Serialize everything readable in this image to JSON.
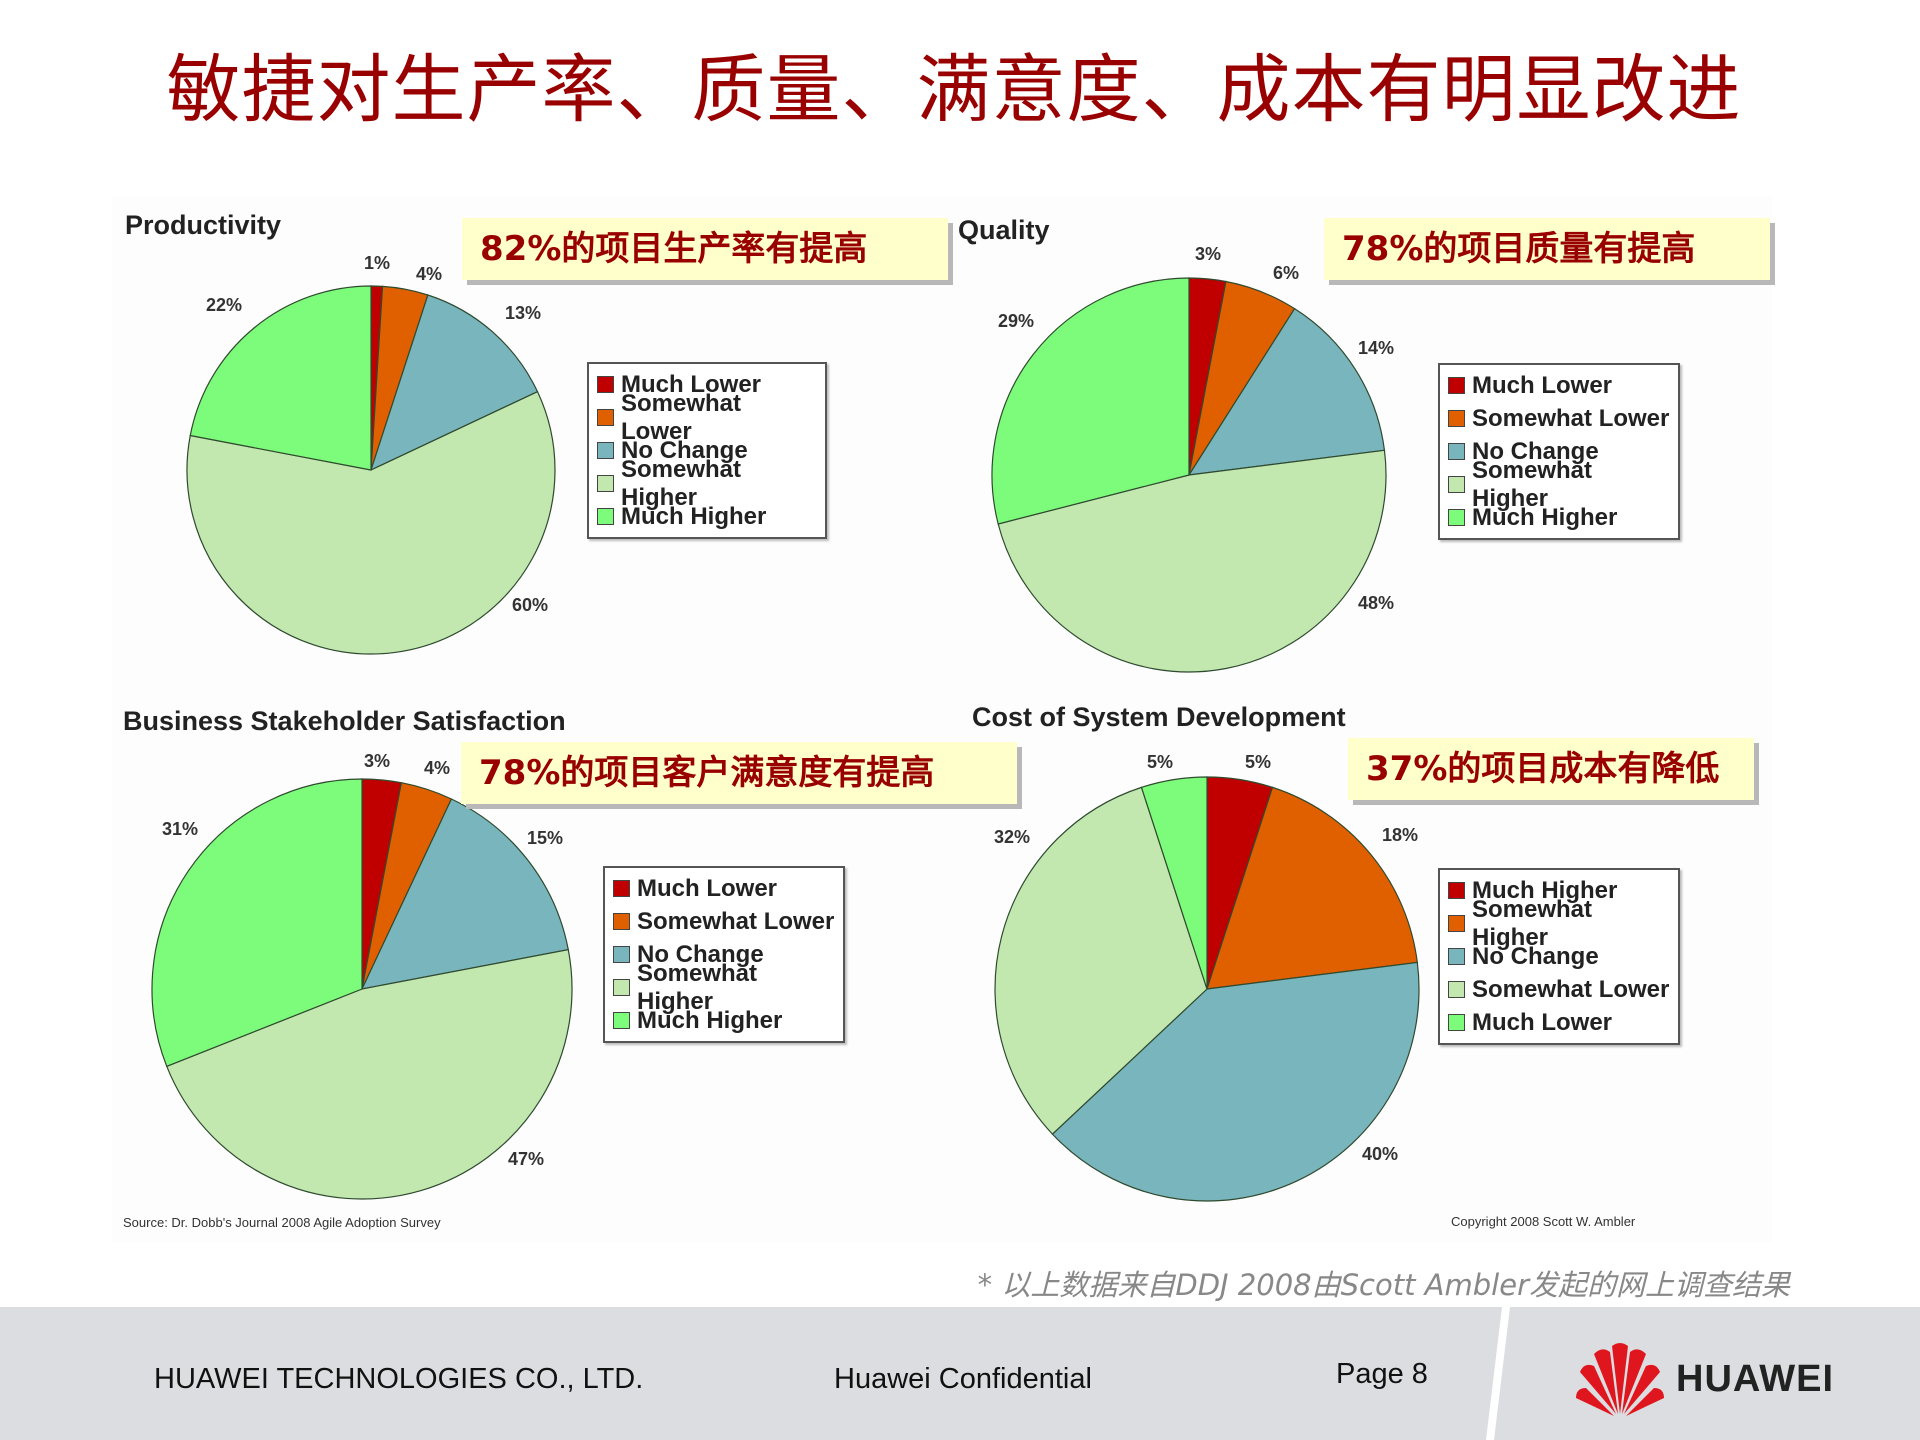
{
  "page": {
    "title": "敏捷对生产率、质量、满意度、成本有明显改进",
    "note": "* 以上数据来自DDJ 2008由Scott Ambler发起的网上调查结果",
    "source": "Source: Dr. Dobb's Journal 2008 Agile Adoption Survey",
    "copyright": "Copyright 2008  Scott W. Ambler"
  },
  "footer": {
    "company": "HUAWEI TECHNOLOGIES CO., LTD.",
    "confidential": "Huawei Confidential",
    "page": "Page 8",
    "logo_text": "HUAWEI"
  },
  "colors": {
    "title": "#990000",
    "callout_bg": "#ffffcc",
    "dark_red": "#c00000",
    "orange": "#e06000",
    "teal": "#79b5bc",
    "pale_green": "#c2e8b0",
    "bright_green": "#7dfc7b"
  },
  "callouts": [
    "82%的项目生产率有提高",
    "78%的项目质量有提高",
    "78%的项目客户满意度有提高",
    "37%的项目成本有降低"
  ],
  "chart_data": [
    {
      "type": "pie",
      "title": "Productivity",
      "categories": [
        "Much Lower",
        "Somewhat Lower",
        "No Change",
        "Somewhat Higher",
        "Much Higher"
      ],
      "values": [
        1,
        4,
        13,
        60,
        22
      ],
      "labels": [
        "1%",
        "4%",
        "13%",
        "60%",
        "22%"
      ],
      "colors": [
        "#c00000",
        "#e06000",
        "#79b5bc",
        "#c2e8b0",
        "#7dfc7b"
      ],
      "legend_position": "right"
    },
    {
      "type": "pie",
      "title": "Quality",
      "categories": [
        "Much Lower",
        "Somewhat Lower",
        "No Change",
        "Somewhat Higher",
        "Much Higher"
      ],
      "values": [
        3,
        6,
        14,
        48,
        29
      ],
      "labels": [
        "3%",
        "6%",
        "14%",
        "48%",
        "29%"
      ],
      "colors": [
        "#c00000",
        "#e06000",
        "#79b5bc",
        "#c2e8b0",
        "#7dfc7b"
      ],
      "legend_position": "right"
    },
    {
      "type": "pie",
      "title": "Business Stakeholder Satisfaction",
      "categories": [
        "Much Lower",
        "Somewhat Lower",
        "No Change",
        "Somewhat Higher",
        "Much Higher"
      ],
      "values": [
        3,
        4,
        15,
        47,
        31
      ],
      "labels": [
        "3%",
        "4%",
        "15%",
        "47%",
        "31%"
      ],
      "colors": [
        "#c00000",
        "#e06000",
        "#79b5bc",
        "#c2e8b0",
        "#7dfc7b"
      ],
      "legend_position": "right"
    },
    {
      "type": "pie",
      "title": "Cost of System Development",
      "categories": [
        "Much Higher",
        "Somewhat Higher",
        "No Change",
        "Somewhat Lower",
        "Much Lower"
      ],
      "values": [
        5,
        18,
        40,
        32,
        5
      ],
      "labels": [
        "5%",
        "18%",
        "40%",
        "32%",
        "5%"
      ],
      "colors": [
        "#c00000",
        "#e06000",
        "#79b5bc",
        "#c2e8b0",
        "#7dfc7b"
      ],
      "legend_position": "right"
    }
  ]
}
